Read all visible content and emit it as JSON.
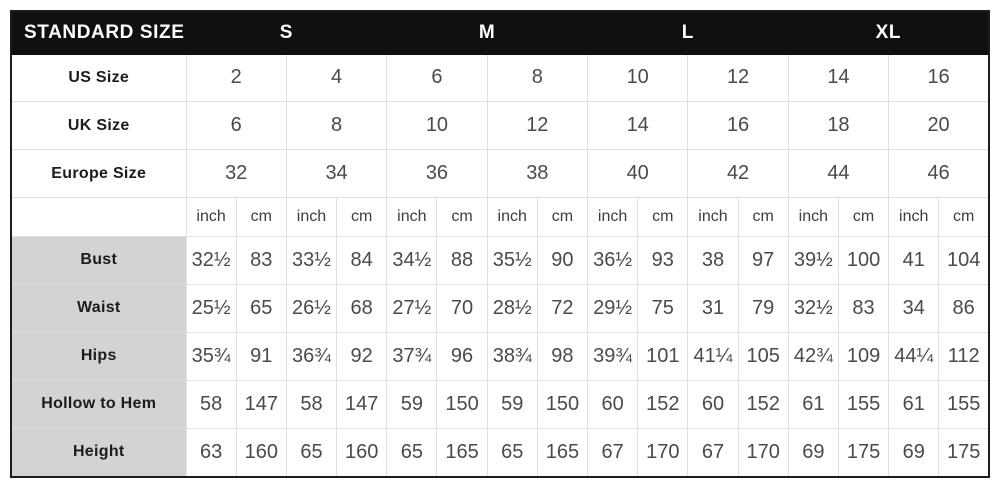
{
  "chart_data": {
    "type": "table",
    "header": {
      "title": "STANDARD SIZE",
      "size_groups": [
        "S",
        "M",
        "L",
        "XL"
      ]
    },
    "size_rows": [
      {
        "label": "US Size",
        "values": [
          "2",
          "4",
          "6",
          "8",
          "10",
          "12",
          "14",
          "16"
        ]
      },
      {
        "label": "UK Size",
        "values": [
          "6",
          "8",
          "10",
          "12",
          "14",
          "16",
          "18",
          "20"
        ]
      },
      {
        "label": "Europe Size",
        "values": [
          "32",
          "34",
          "36",
          "38",
          "40",
          "42",
          "44",
          "46"
        ]
      }
    ],
    "unit_row": {
      "label": "",
      "units": [
        "inch",
        "cm",
        "inch",
        "cm",
        "inch",
        "cm",
        "inch",
        "cm",
        "inch",
        "cm",
        "inch",
        "cm",
        "inch",
        "cm",
        "inch",
        "cm"
      ]
    },
    "measurement_rows": [
      {
        "label": "Bust",
        "values": [
          "32½",
          "83",
          "33½",
          "84",
          "34½",
          "88",
          "35½",
          "90",
          "36½",
          "93",
          "38",
          "97",
          "39½",
          "100",
          "41",
          "104"
        ]
      },
      {
        "label": "Waist",
        "values": [
          "25½",
          "65",
          "26½",
          "68",
          "27½",
          "70",
          "28½",
          "72",
          "29½",
          "75",
          "31",
          "79",
          "32½",
          "83",
          "34",
          "86"
        ]
      },
      {
        "label": "Hips",
        "values": [
          "35¾",
          "91",
          "36¾",
          "92",
          "37¾",
          "96",
          "38¾",
          "98",
          "39¾",
          "101",
          "41¼",
          "105",
          "42¾",
          "109",
          "44¼",
          "112"
        ]
      },
      {
        "label": "Hollow to Hem",
        "values": [
          "58",
          "147",
          "58",
          "147",
          "59",
          "150",
          "59",
          "150",
          "60",
          "152",
          "60",
          "152",
          "61",
          "155",
          "61",
          "155"
        ]
      },
      {
        "label": "Height",
        "values": [
          "63",
          "160",
          "65",
          "160",
          "65",
          "165",
          "65",
          "165",
          "67",
          "170",
          "67",
          "170",
          "69",
          "175",
          "69",
          "175"
        ]
      }
    ]
  },
  "colors": {
    "page_bg": "#ffffff",
    "header_bg": "#101010",
    "header_text": "#ffffff",
    "label_cell_bg": "#d3d3d3",
    "grid_line": "#e0e0e0",
    "outer_border": "#1c1c1c",
    "value_text": "#4a4a4a",
    "label_text": "#1c1c1c"
  }
}
